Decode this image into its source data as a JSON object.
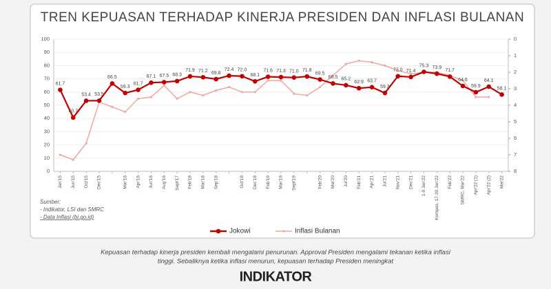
{
  "chart_data": {
    "type": "line",
    "title": "TREN KEPUASAN TERHADAP KINERJA PRESIDEN DAN INFLASI BULANAN",
    "categories": [
      "Jan'15",
      "Jun'15",
      "Oct'15",
      "Dec'15",
      null,
      "Mar'16",
      "Apr'16",
      "Jun'16",
      "Aug'16",
      "Sept'17",
      "Feb'18",
      "Mar'18",
      "Sep'18",
      null,
      "Oct'18",
      "Dec'18",
      "Feb'19",
      "Mar'19",
      "Sept'19",
      null,
      "Feb'20",
      "Mei'20",
      "Jul'20",
      "Feb'21",
      "Apr'21",
      "Jul'21",
      "Nov'21",
      "Dec'21",
      "1-9 Jan'22",
      "Kompas, 17-30 Jan'22",
      "Feb'22",
      "SMRC, Mar'22",
      "Apr'22 (1)",
      "Apr'22 (2)",
      "Mei'22"
    ],
    "series": [
      {
        "name": "Jokowi",
        "color": "#c00000",
        "values": [
          61.7,
          40.7,
          53.4,
          53.5,
          66.5,
          59.3,
          61.7,
          67.1,
          67.5,
          68.3,
          71.9,
          71.2,
          69.8,
          72.4,
          72.0,
          68.1,
          71.6,
          71.3,
          71.0,
          71.8,
          69.5,
          66.5,
          65.2,
          62.9,
          63.7,
          59.3,
          72.0,
          71.4,
          75.3,
          73.9,
          71.7,
          64.6,
          59.9,
          64.1,
          58.1
        ],
        "value_labels": [
          "61.7",
          "40.7",
          "53.4",
          "53.5",
          "66.5",
          "59.3",
          "61.7",
          "67.1",
          "67.5",
          "68.3",
          "71.9",
          "71.2",
          "69.8",
          "72.4",
          "72.0",
          "68.1",
          "71.6",
          "71.3",
          "71.0",
          "71.8",
          "69.5",
          "66.5",
          "65.2",
          "62.9",
          "63.7",
          "59.3",
          "72.0",
          "71.4",
          "75.3",
          "73.9",
          "71.7",
          "64.6",
          "59.9",
          "64.1",
          "58.1"
        ]
      },
      {
        "name": "Inflasi Bulanan",
        "color": "#f2a6a0",
        "axis": "y2",
        "values": [
          7.0,
          7.3,
          6.3,
          3.8,
          4.1,
          4.4,
          3.6,
          3.5,
          2.8,
          3.6,
          3.2,
          3.4,
          3.1,
          2.9,
          3.2,
          3.2,
          2.5,
          2.5,
          3.3,
          3.4,
          2.9,
          2.2,
          1.5,
          1.3,
          1.4,
          1.6,
          1.9,
          2.1,
          2.0,
          2.0,
          2.2,
          2.5,
          3.5,
          3.5,
          null
        ]
      }
    ],
    "ylim": [
      0,
      100
    ],
    "yticks": [
      0,
      10,
      20,
      30,
      40,
      50,
      60,
      70,
      80,
      90,
      100
    ],
    "y2lim": [
      8,
      0
    ],
    "y2ticks": [
      0,
      1,
      2,
      3,
      4,
      5,
      6,
      7,
      8
    ],
    "grid": true,
    "legend": "bottom",
    "source_title": "Sumber:",
    "sources": [
      "- Indikator, LSI dan SMRC",
      "- Data Inflasi (bi.go.id)"
    ],
    "caption": [
      "Kepuasan terhadap kinerja presiden kembali mengalami penurunan. Approval Presiden mengalami tekanan ketika inflasi",
      "tinggi. Sebaliknya ketika inflasi menurun, kepuasan terhadap Presiden meningkat"
    ],
    "logo": "INDIKATOR"
  }
}
